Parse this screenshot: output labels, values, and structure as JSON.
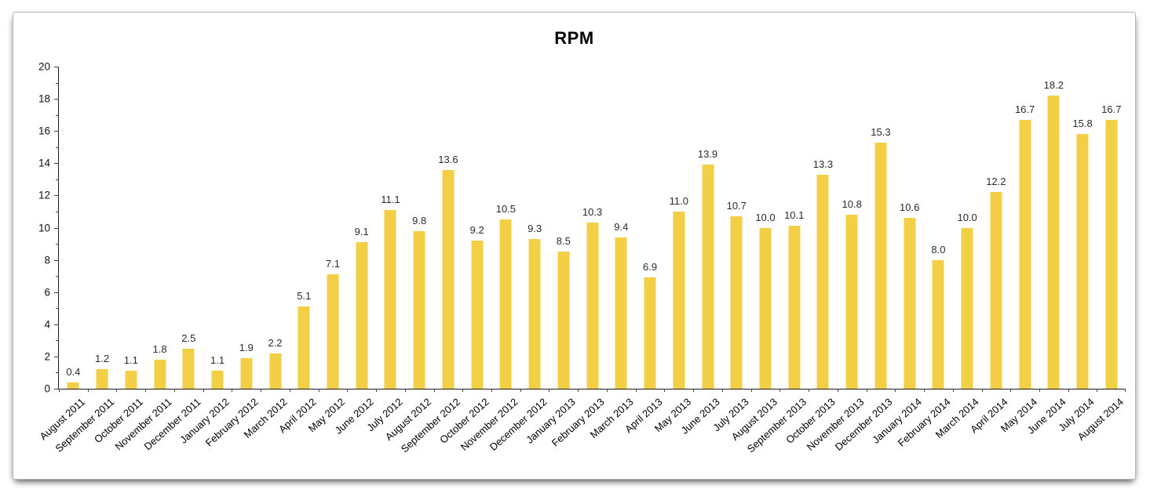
{
  "card": {
    "background": "#ffffff",
    "border_color": "#b5b5b5"
  },
  "chart_data": {
    "type": "bar",
    "title": "RPM",
    "xlabel": "",
    "ylabel": "",
    "categories": [
      "August 2011",
      "September 2011",
      "October 2011",
      "November 2011",
      "December 2011",
      "January 2012",
      "February 2012",
      "March 2012",
      "April 2012",
      "May 2012",
      "June 2012",
      "July 2012",
      "August 2012",
      "September 2012",
      "October 2012",
      "November 2012",
      "December 2012",
      "January 2013",
      "February 2013",
      "March 2013",
      "April 2013",
      "May 2013",
      "June 2013",
      "July 2013",
      "August 2013",
      "September 2013",
      "October 2013",
      "November 2013",
      "December 2013",
      "January 2014",
      "February 2014",
      "March 2014",
      "April 2014",
      "May 2014",
      "June 2014",
      "July 2014",
      "August 2014"
    ],
    "values": [
      0.4,
      1.2,
      1.1,
      1.8,
      2.5,
      1.1,
      1.9,
      2.2,
      5.1,
      7.1,
      9.1,
      11.1,
      9.8,
      13.6,
      9.2,
      10.5,
      9.3,
      8.5,
      10.3,
      9.4,
      6.9,
      11.0,
      13.9,
      10.7,
      10.0,
      10.1,
      13.3,
      10.8,
      15.3,
      10.6,
      8.0,
      10.0,
      12.2,
      16.7,
      18.2,
      15.8,
      16.7
    ],
    "value_label_decimals": 1,
    "ylim": [
      0,
      20
    ],
    "yticks": [
      0,
      2,
      4,
      6,
      8,
      10,
      12,
      14,
      16,
      18,
      20
    ],
    "ytick_step": 2,
    "yminor_step": 1,
    "bar_color": "#F2CF45",
    "value_label_color": "#2b2b2b",
    "axis_color": "#1a1a1a",
    "grid": false,
    "legend_position": "none",
    "x_label_rotation_deg": -42
  }
}
